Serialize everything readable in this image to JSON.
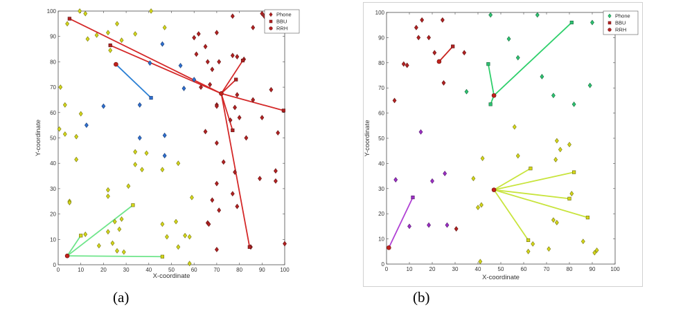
{
  "chart_data": [
    {
      "type": "scatter",
      "panel_label": "(a)",
      "xlabel": "X-coordinate",
      "ylabel": "Y-coordinate",
      "xlim": [
        0,
        100
      ],
      "ylim": [
        0,
        100
      ],
      "xticks": [
        0,
        10,
        20,
        30,
        40,
        50,
        60,
        70,
        80,
        90,
        100
      ],
      "yticks": [
        0,
        10,
        20,
        30,
        40,
        50,
        60,
        70,
        80,
        90,
        100
      ],
      "grid": false,
      "legend_position": "top-right",
      "legend": [
        {
          "label": "Phone",
          "marker": "diamond",
          "color": "#b22222"
        },
        {
          "label": "BBU",
          "marker": "square",
          "color": "#b22222"
        },
        {
          "label": "RRH",
          "marker": "circle",
          "color": "#b22222"
        }
      ],
      "clusters": [
        {
          "color": "#d4d61a",
          "line_color": "#6ee58a",
          "rrh": [
            4,
            3.5
          ],
          "bbu": [
            [
              10,
              11.5
            ],
            [
              33,
              23.5
            ],
            [
              46,
              3.2
            ]
          ],
          "phones": [
            [
              9.5,
              100
            ],
            [
              12,
              99
            ],
            [
              4,
              95
            ],
            [
              13,
              89
            ],
            [
              17,
              90.5
            ],
            [
              22,
              91.5
            ],
            [
              26,
              95
            ],
            [
              28,
              88.5
            ],
            [
              34,
              91
            ],
            [
              47,
              93.5
            ],
            [
              3,
              63
            ],
            [
              10,
              59.5
            ],
            [
              1,
              70
            ],
            [
              0.5,
              53.5
            ],
            [
              3,
              51.5
            ],
            [
              8,
              50.5
            ],
            [
              8,
              41.5
            ],
            [
              5,
              25
            ],
            [
              5,
              24.5
            ],
            [
              12,
              12
            ],
            [
              22,
              29.5
            ],
            [
              22,
              27
            ],
            [
              22,
              13
            ],
            [
              24,
              8.5
            ],
            [
              25,
              17
            ],
            [
              26,
              5.5
            ],
            [
              27,
              14
            ],
            [
              28,
              18
            ],
            [
              29,
              5
            ],
            [
              31,
              31
            ],
            [
              34,
              39.5
            ],
            [
              34,
              44.5
            ],
            [
              37,
              37.5
            ],
            [
              39,
              44
            ],
            [
              46,
              37.5
            ],
            [
              46,
              16
            ],
            [
              48,
              11
            ],
            [
              52,
              17
            ],
            [
              53,
              7
            ],
            [
              53,
              40
            ],
            [
              56,
              11.5
            ],
            [
              58,
              11
            ],
            [
              58,
              0.5
            ],
            [
              59,
              26.5
            ],
            [
              18,
              7.5
            ],
            [
              41,
              100
            ],
            [
              23,
              84.5
            ]
          ]
        },
        {
          "color": "#2f6fd0",
          "line_color": "#2a7fd4",
          "rrh": [
            25.5,
            79
          ],
          "bbu": [
            [
              41,
              65.8
            ]
          ],
          "phones": [
            [
              40.5,
              79.5
            ],
            [
              46,
              87
            ],
            [
              12.5,
              55
            ],
            [
              20,
              62.5
            ],
            [
              36,
              63
            ],
            [
              36,
              50
            ],
            [
              47,
              51
            ],
            [
              47,
              43
            ],
            [
              54,
              78.5
            ],
            [
              55.5,
              69.5
            ],
            [
              60,
              73
            ]
          ]
        },
        {
          "color": "#b22222",
          "line_color": "#d42828",
          "rrh": [
            72,
            67.5
          ],
          "bbu": [
            [
              81.5,
              80.5
            ],
            [
              78.5,
              73
            ],
            [
              99.5,
              60.8
            ],
            [
              77,
              53
            ],
            [
              84.5,
              7
            ],
            [
              23,
              86.5
            ],
            [
              5,
              97
            ]
          ],
          "phones": [
            [
              60,
              89.5
            ],
            [
              62,
              91
            ],
            [
              65,
              86
            ],
            [
              70,
              91.5
            ],
            [
              77,
              98
            ],
            [
              77,
              82.5
            ],
            [
              79,
              82
            ],
            [
              82,
              81
            ],
            [
              86,
              93.5
            ],
            [
              90,
              99
            ],
            [
              91,
              98
            ],
            [
              97,
              96.5
            ],
            [
              61,
              83
            ],
            [
              66,
              80
            ],
            [
              68,
              77
            ],
            [
              71,
              80
            ],
            [
              63,
              70
            ],
            [
              67,
              71
            ],
            [
              70,
              63
            ],
            [
              70,
              62.5
            ],
            [
              76,
              57
            ],
            [
              78,
              62
            ],
            [
              79,
              67
            ],
            [
              80,
              58
            ],
            [
              83,
              50
            ],
            [
              86,
              65
            ],
            [
              90,
              58
            ],
            [
              94,
              69
            ],
            [
              97,
              52
            ],
            [
              96,
              37
            ],
            [
              96,
              33
            ],
            [
              89,
              34
            ],
            [
              78,
              36.5
            ],
            [
              77,
              28
            ],
            [
              73,
              40.5
            ],
            [
              79,
              23
            ],
            [
              70,
              48
            ],
            [
              65,
              52.5
            ],
            [
              70,
              32
            ],
            [
              68,
              25.5
            ],
            [
              71,
              21.5
            ],
            [
              66,
              16.5
            ],
            [
              66.5,
              16
            ],
            [
              70,
              6
            ],
            [
              100,
              8.3
            ],
            [
              85,
              7
            ]
          ]
        }
      ]
    },
    {
      "type": "scatter",
      "panel_label": "(b)",
      "xlabel": "X-coordinate",
      "ylabel": "Y-coordinate",
      "xlim": [
        0,
        100
      ],
      "ylim": [
        0,
        100
      ],
      "xticks": [
        0,
        10,
        20,
        30,
        40,
        50,
        60,
        70,
        80,
        90,
        100
      ],
      "yticks": [
        0,
        10,
        20,
        30,
        40,
        50,
        60,
        70,
        80,
        90,
        100
      ],
      "grid": false,
      "legend_position": "top-right",
      "legend": [
        {
          "label": "Phone",
          "marker": "diamond",
          "color": "#2ec271"
        },
        {
          "label": "BBU",
          "marker": "square",
          "color": "#b22222"
        },
        {
          "label": "RRH",
          "marker": "circle",
          "color": "#b22222"
        }
      ],
      "clusters": [
        {
          "color": "#b22222",
          "line_color": "#c8241e",
          "rrh": [
            23,
            80.5
          ],
          "bbu": [
            [
              29,
              86.5
            ]
          ],
          "phones": [
            [
              13,
              94
            ],
            [
              15.5,
              97
            ],
            [
              24.5,
              97
            ],
            [
              14,
              90
            ],
            [
              18.5,
              90
            ],
            [
              21,
              84
            ],
            [
              7.5,
              79.5
            ],
            [
              9,
              79
            ],
            [
              34,
              84
            ],
            [
              25,
              72
            ],
            [
              3.5,
              65
            ],
            [
              30.5,
              14
            ]
          ]
        },
        {
          "color": "#2ec271",
          "line_color": "#2ecf6b",
          "rrh": [
            47,
            67
          ],
          "bbu": [
            [
              81,
              96
            ],
            [
              44.5,
              79.5
            ],
            [
              45.5,
              63.5
            ]
          ],
          "phones": [
            [
              45.5,
              99
            ],
            [
              66,
              99
            ],
            [
              53.5,
              89.5
            ],
            [
              57.5,
              82
            ],
            [
              68,
              74.5
            ],
            [
              35,
              68.5
            ],
            [
              73,
              67
            ],
            [
              82,
              63.5
            ],
            [
              89,
              71
            ],
            [
              90,
              96
            ]
          ]
        },
        {
          "color": "#d4d61a",
          "line_color": "#c8e43c",
          "rrh": [
            47,
            29.5
          ],
          "bbu": [
            [
              63,
              38
            ],
            [
              82,
              36.5
            ],
            [
              80,
              26
            ],
            [
              88,
              18.5
            ],
            [
              62,
              9.5
            ]
          ],
          "phones": [
            [
              56,
              54.5
            ],
            [
              57.5,
              43
            ],
            [
              74.5,
              49
            ],
            [
              76,
              45.5
            ],
            [
              80,
              47.5
            ],
            [
              74,
              41.5
            ],
            [
              38,
              34
            ],
            [
              42,
              42
            ],
            [
              40,
              22.5
            ],
            [
              41.5,
              23.5
            ],
            [
              81,
              28
            ],
            [
              73,
              17.5
            ],
            [
              74.5,
              16.5
            ],
            [
              64,
              8
            ],
            [
              62,
              5
            ],
            [
              71,
              6
            ],
            [
              86,
              9
            ],
            [
              91,
              4.5
            ],
            [
              92,
              5.5
            ],
            [
              41,
              1
            ]
          ]
        },
        {
          "color": "#9b2fc4",
          "line_color": "#b040d4",
          "rrh": [
            1,
            6.5
          ],
          "bbu": [
            [
              11.5,
              26.5
            ]
          ],
          "phones": [
            [
              15,
              52.5
            ],
            [
              4,
              33.5
            ],
            [
              20,
              33
            ],
            [
              25.5,
              36
            ],
            [
              18.5,
              15.5
            ],
            [
              10,
              15
            ],
            [
              26.5,
              15.5
            ]
          ]
        }
      ]
    }
  ]
}
